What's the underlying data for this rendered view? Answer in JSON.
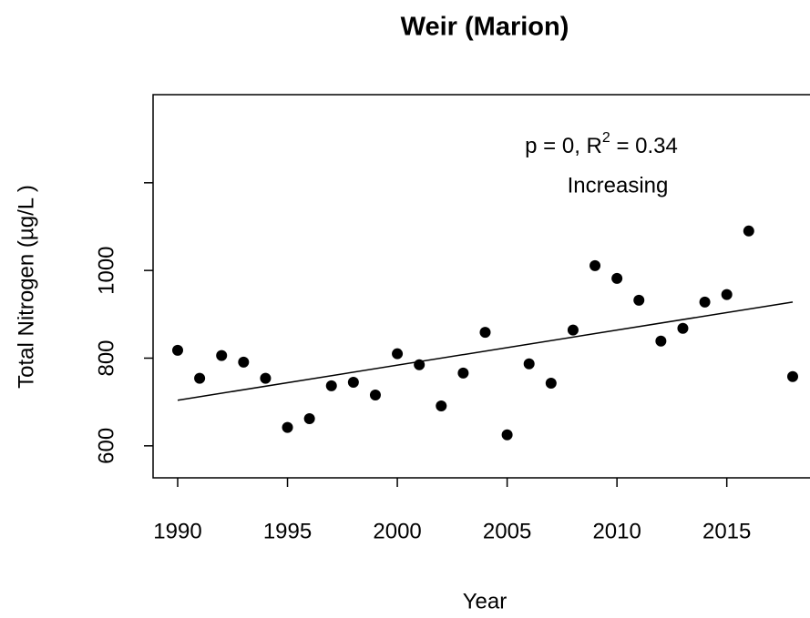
{
  "chart_data": {
    "type": "scatter",
    "title": "Weir (Marion)",
    "x_label": "Year",
    "y_label": "Total Nitrogen (µg/L )",
    "annotation": {
      "line1_a": "p = 0, R",
      "line1_sup": "2",
      "line1_b": " = 0.34",
      "line2": "Increasing"
    },
    "x": [
      1990,
      1991,
      1992,
      1993,
      1994,
      1995,
      1996,
      1997,
      1998,
      1999,
      2000,
      2001,
      2002,
      2003,
      2004,
      2005,
      2006,
      2007,
      2008,
      2009,
      2010,
      2011,
      2012,
      2013,
      2014,
      2015,
      2016,
      2018
    ],
    "values": [
      818,
      754,
      806,
      791,
      754,
      642,
      662,
      737,
      745,
      716,
      810,
      785,
      691,
      766,
      859,
      625,
      787,
      743,
      864,
      1011,
      982,
      932,
      839,
      868,
      928,
      945,
      1090,
      758
    ],
    "color": "#000000",
    "trend": {
      "x": [
        1990,
        2018
      ],
      "values": [
        704,
        928
      ],
      "color": "#000000"
    },
    "xlim": [
      1988.88,
      2019.12
    ],
    "xticks": [
      1990,
      1995,
      2000,
      2005,
      2010,
      2015
    ],
    "ylim": [
      527,
      1401
    ],
    "yticks": [
      600,
      800,
      1000,
      {
        "value": 1200,
        "label": null
      }
    ],
    "grid": false
  }
}
